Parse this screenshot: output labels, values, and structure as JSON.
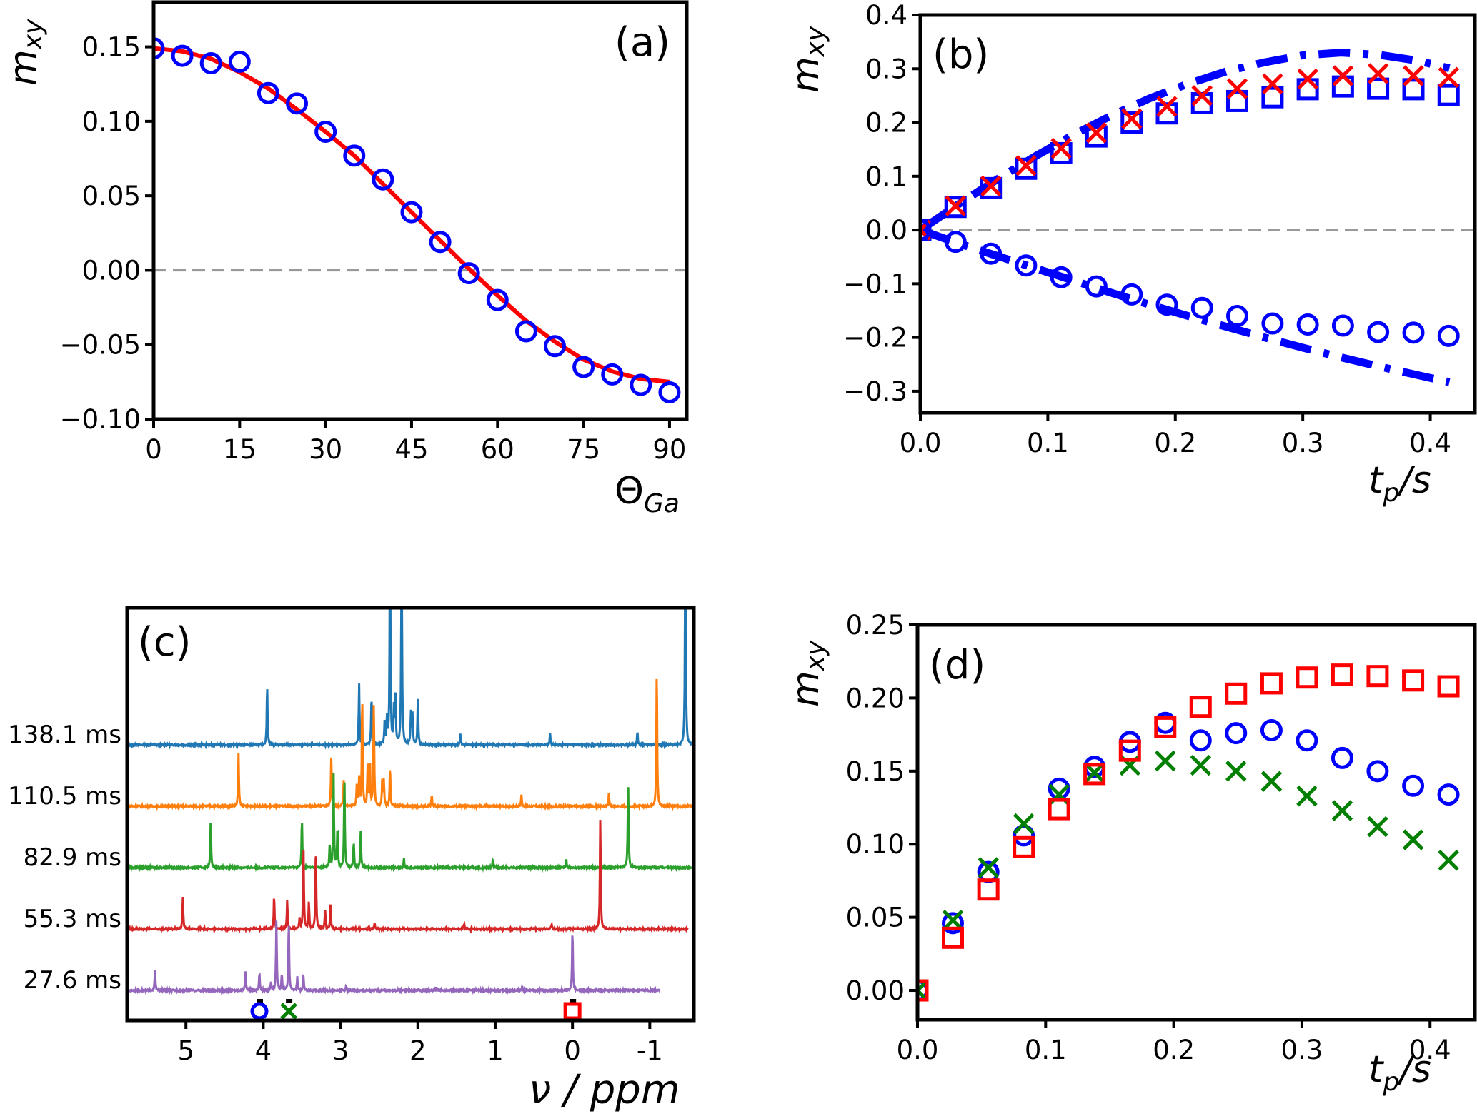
{
  "figure": {
    "panels": [
      "(a)",
      "(b)",
      "(c)",
      "(d)"
    ]
  },
  "colors": {
    "blue": "#0000ff",
    "red": "#ff0000",
    "green": "#007f00",
    "zero_line": "#999999",
    "trace_138": "#1f77b4",
    "trace_110": "#ff7f0e",
    "trace_82": "#2ca02c",
    "trace_55": "#d62728",
    "trace_27": "#9467bd"
  },
  "chart_data": [
    {
      "id": "a",
      "type": "scatter",
      "panel_label": "(a)",
      "xlabel": "Θ",
      "xlabel_sub": "Ga",
      "ylabel": "m",
      "ylabel_sub": "xy",
      "xlim": [
        0,
        93
      ],
      "ylim": [
        -0.1,
        0.18
      ],
      "xticks": [
        0,
        15,
        30,
        45,
        60,
        75,
        90
      ],
      "xtick_labels": [
        "0",
        "15",
        "30",
        "45",
        "60",
        "75",
        "90"
      ],
      "yticks": [
        -0.1,
        -0.05,
        0.0,
        0.05,
        0.1,
        0.15
      ],
      "ytick_labels": [
        "−0.10",
        "−0.05",
        "0.00",
        "0.05",
        "0.10",
        "0.15"
      ],
      "zero_line": true,
      "series": [
        {
          "name": "measured",
          "marker": "circle",
          "color": "#0000ff",
          "x": [
            0,
            5,
            10,
            15,
            20,
            25,
            30,
            35,
            40,
            45,
            50,
            55,
            60,
            65,
            70,
            75,
            80,
            85,
            90
          ],
          "y": [
            0.149,
            0.144,
            0.139,
            0.14,
            0.119,
            0.112,
            0.093,
            0.077,
            0.061,
            0.039,
            0.019,
            -0.002,
            -0.02,
            -0.041,
            -0.051,
            -0.065,
            -0.07,
            -0.077,
            -0.082
          ]
        },
        {
          "name": "fit",
          "line": "solid",
          "color": "#ff0000",
          "x": [
            0,
            5,
            10,
            15,
            20,
            25,
            30,
            35,
            40,
            45,
            50,
            55,
            60,
            65,
            70,
            75,
            80,
            85,
            90
          ],
          "y": [
            0.149,
            0.147,
            0.142,
            0.133,
            0.122,
            0.108,
            0.093,
            0.077,
            0.058,
            0.039,
            0.02,
            0.001,
            -0.017,
            -0.034,
            -0.048,
            -0.06,
            -0.068,
            -0.073,
            -0.075
          ]
        }
      ]
    },
    {
      "id": "b",
      "type": "scatter",
      "panel_label": "(b)",
      "xlabel": "t",
      "xlabel_sub": "p",
      "xlabel_suffix": "/s",
      "ylabel": "m",
      "ylabel_sub": "xy",
      "xlim": [
        0,
        0.435
      ],
      "ylim": [
        -0.34,
        0.4
      ],
      "xticks": [
        0.0,
        0.1,
        0.2,
        0.3,
        0.4
      ],
      "xtick_labels": [
        "0.0",
        "0.1",
        "0.2",
        "0.3",
        "0.4"
      ],
      "yticks": [
        -0.3,
        -0.2,
        -0.1,
        0.0,
        0.1,
        0.2,
        0.3,
        0.4
      ],
      "ytick_labels": [
        "−0.3",
        "−0.2",
        "−0.1",
        "0.0",
        "0.1",
        "0.2",
        "0.3",
        "0.4"
      ],
      "zero_line": true,
      "x": [
        0.0,
        0.0276,
        0.0553,
        0.0829,
        0.1105,
        0.1381,
        0.1658,
        0.1934,
        0.221,
        0.2486,
        0.2763,
        0.3039,
        0.3315,
        0.3591,
        0.3868,
        0.4144
      ],
      "series": [
        {
          "name": "squares",
          "marker": "square",
          "color": "#0000ff",
          "y": [
            0.0,
            0.043,
            0.078,
            0.114,
            0.143,
            0.174,
            0.2,
            0.217,
            0.236,
            0.24,
            0.247,
            0.262,
            0.267,
            0.263,
            0.262,
            0.251
          ]
        },
        {
          "name": "crosses",
          "marker": "x",
          "color": "#ff0000",
          "y": [
            0.0,
            0.045,
            0.082,
            0.12,
            0.152,
            0.181,
            0.207,
            0.23,
            0.25,
            0.263,
            0.272,
            0.281,
            0.287,
            0.291,
            0.287,
            0.284
          ]
        },
        {
          "name": "circles",
          "marker": "circle",
          "color": "#0000ff",
          "y": [
            0.0,
            -0.022,
            -0.044,
            -0.066,
            -0.088,
            -0.105,
            -0.12,
            -0.139,
            -0.145,
            -0.16,
            -0.174,
            -0.176,
            -0.178,
            -0.19,
            -0.191,
            -0.197
          ]
        },
        {
          "name": "model-upper",
          "line": "dashdot",
          "color": "#0000ff",
          "x": [
            0.0,
            0.03,
            0.06,
            0.09,
            0.12,
            0.15,
            0.18,
            0.21,
            0.24,
            0.27,
            0.3,
            0.33,
            0.36,
            0.39,
            0.415
          ],
          "y": [
            0.0,
            0.048,
            0.094,
            0.137,
            0.177,
            0.213,
            0.245,
            0.272,
            0.295,
            0.312,
            0.325,
            0.33,
            0.326,
            0.315,
            0.301
          ]
        },
        {
          "name": "model-lower",
          "line": "dashdot",
          "color": "#0000ff",
          "x": [
            0.0,
            0.03,
            0.06,
            0.09,
            0.12,
            0.15,
            0.18,
            0.21,
            0.24,
            0.27,
            0.3,
            0.33,
            0.36,
            0.39,
            0.415
          ],
          "y": [
            0.0,
            -0.025,
            -0.048,
            -0.071,
            -0.094,
            -0.117,
            -0.139,
            -0.16,
            -0.18,
            -0.2,
            -0.219,
            -0.237,
            -0.254,
            -0.27,
            -0.283
          ]
        }
      ]
    },
    {
      "id": "c",
      "type": "line",
      "panel_label": "(c)",
      "xlabel": "ν / ppm",
      "xlim": [
        5.76,
        -1.57
      ],
      "xticks": [
        5,
        4,
        3,
        2,
        1,
        0,
        -1
      ],
      "xtick_labels": [
        "5",
        "4",
        "3",
        "2",
        "1",
        "0",
        "-1"
      ],
      "traces": [
        {
          "label": "138.1 ms",
          "color": "#1f77b4",
          "x_end": -1.57,
          "peaks": [
            [
              3.95,
              1.35
            ],
            [
              2.76,
              1.38
            ],
            [
              2.6,
              1.1
            ],
            [
              2.43,
              0.5
            ],
            [
              2.4,
              0.6
            ],
            [
              2.36,
              5.0
            ],
            [
              2.31,
              0.8
            ],
            [
              2.29,
              1.1
            ],
            [
              2.21,
              5.0
            ],
            [
              2.09,
              0.7
            ],
            [
              2.07,
              0.7
            ],
            [
              2.0,
              1.05
            ],
            [
              1.45,
              0.25
            ],
            [
              0.29,
              0.25
            ],
            [
              -0.84,
              0.3
            ],
            [
              -1.46,
              5.0
            ]
          ]
        },
        {
          "label": "110.5 ms",
          "color": "#ff7f0e",
          "x_end": -1.57,
          "peaks": [
            [
              4.32,
              1.2
            ],
            [
              3.12,
              1.15
            ],
            [
              2.96,
              0.6
            ],
            [
              2.79,
              0.5
            ],
            [
              2.76,
              0.6
            ],
            [
              2.72,
              2.5
            ],
            [
              2.65,
              0.9
            ],
            [
              2.62,
              0.95
            ],
            [
              2.57,
              2.4
            ],
            [
              2.46,
              0.6
            ],
            [
              2.44,
              0.55
            ],
            [
              2.36,
              0.9
            ],
            [
              1.82,
              0.25
            ],
            [
              0.66,
              0.25
            ],
            [
              -0.47,
              0.3
            ],
            [
              -1.09,
              3.1
            ]
          ]
        },
        {
          "label": "82.9 ms",
          "color": "#2ca02c",
          "x_end": -1.57,
          "peaks": [
            [
              4.68,
              1.05
            ],
            [
              3.5,
              1.1
            ],
            [
              3.14,
              0.55
            ],
            [
              3.09,
              2.1
            ],
            [
              3.04,
              0.9
            ],
            [
              2.95,
              2.05
            ],
            [
              2.83,
              0.6
            ],
            [
              2.74,
              0.85
            ],
            [
              2.18,
              0.2
            ],
            [
              1.03,
              0.2
            ],
            [
              0.08,
              0.2
            ],
            [
              -0.72,
              2.0
            ]
          ]
        },
        {
          "label": "55.3 ms",
          "color": "#d62728",
          "x_end": -1.5,
          "peaks": [
            [
              5.04,
              0.75
            ],
            [
              3.86,
              0.75
            ],
            [
              3.69,
              0.65
            ],
            [
              3.53,
              0.25
            ],
            [
              3.48,
              1.9
            ],
            [
              3.41,
              0.6
            ],
            [
              3.32,
              1.9
            ],
            [
              3.2,
              0.45
            ],
            [
              3.13,
              0.55
            ],
            [
              2.56,
              0.15
            ],
            [
              1.4,
              0.12
            ],
            [
              0.27,
              0.12
            ],
            [
              -0.36,
              2.5
            ]
          ]
        },
        {
          "label": "27.6 ms",
          "color": "#9467bd",
          "x_end": -1.13,
          "peaks": [
            [
              5.4,
              0.45
            ],
            [
              4.23,
              0.45
            ],
            [
              4.05,
              0.4
            ],
            [
              3.9,
              0.2
            ],
            [
              3.83,
              1.6
            ],
            [
              3.76,
              0.35
            ],
            [
              3.67,
              1.55
            ],
            [
              3.56,
              0.3
            ],
            [
              3.48,
              0.35
            ],
            [
              2.93,
              0.1
            ],
            [
              1.77,
              0.08
            ],
            [
              0.65,
              0.08
            ],
            [
              0.0,
              1.35
            ]
          ]
        }
      ],
      "annotations": [
        {
          "x": 4.05,
          "marker": "circle",
          "color": "#0000ff"
        },
        {
          "x": 3.67,
          "marker": "x",
          "color": "#007f00"
        },
        {
          "x": 0.0,
          "marker": "square",
          "color": "#ff0000"
        }
      ]
    },
    {
      "id": "d",
      "type": "scatter",
      "panel_label": "(d)",
      "xlabel": "t",
      "xlabel_sub": "p",
      "xlabel_suffix": "/s",
      "ylabel": "m",
      "ylabel_sub": "xy",
      "xlim": [
        0,
        0.435
      ],
      "ylim": [
        -0.02,
        0.25
      ],
      "xticks": [
        0.0,
        0.1,
        0.2,
        0.3,
        0.4
      ],
      "xtick_labels": [
        "0.0",
        "0.1",
        "0.2",
        "0.3",
        "0.4"
      ],
      "yticks": [
        0.0,
        0.05,
        0.1,
        0.15,
        0.2,
        0.25
      ],
      "ytick_labels": [
        "0.00",
        "0.05",
        "0.10",
        "0.15",
        "0.20",
        "0.25"
      ],
      "zero_line": false,
      "x": [
        0.0,
        0.0276,
        0.0553,
        0.0829,
        0.1105,
        0.1381,
        0.1658,
        0.1934,
        0.221,
        0.2486,
        0.2763,
        0.3039,
        0.3315,
        0.3591,
        0.3868,
        0.4144
      ],
      "series": [
        {
          "name": "circles",
          "marker": "circle",
          "color": "#0000ff",
          "y": [
            0.0,
            0.046,
            0.081,
            0.106,
            0.138,
            0.153,
            0.17,
            0.183,
            0.171,
            0.176,
            0.178,
            0.171,
            0.159,
            0.15,
            0.14,
            0.134
          ]
        },
        {
          "name": "crosses",
          "marker": "x",
          "color": "#007f00",
          "y": [
            0.0,
            0.048,
            0.084,
            0.114,
            0.134,
            0.149,
            0.154,
            0.157,
            0.154,
            0.15,
            0.143,
            0.133,
            0.123,
            0.112,
            0.103,
            0.089
          ]
        },
        {
          "name": "squares",
          "marker": "square",
          "color": "#ff0000",
          "y": [
            0.0,
            0.036,
            0.069,
            0.098,
            0.124,
            0.148,
            0.164,
            0.18,
            0.194,
            0.203,
            0.21,
            0.214,
            0.216,
            0.215,
            0.212,
            0.208
          ]
        }
      ]
    }
  ]
}
